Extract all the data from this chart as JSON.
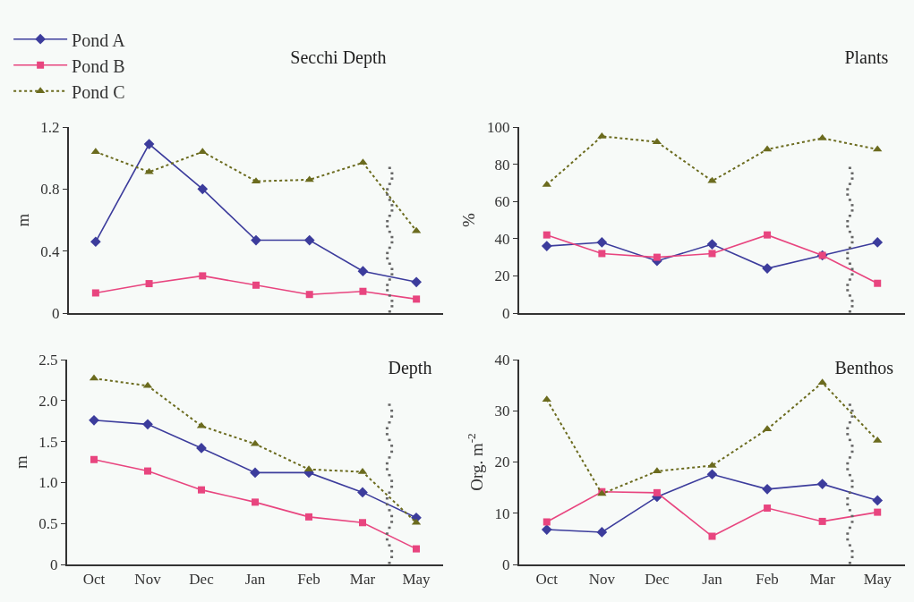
{
  "chart_data": [
    {
      "type": "line",
      "title": "Secchi Depth",
      "ylabel": "m",
      "categories": [
        null,
        null,
        null,
        null,
        null,
        null,
        null
      ],
      "ylim": [
        0,
        1.2
      ],
      "yticks": [
        0,
        0.4,
        0.8,
        1.2
      ],
      "tick_labels": "y",
      "grid": false,
      "legend": "top left",
      "series": [
        {
          "name": "Pond A",
          "color": "#3c3c9c",
          "marker": "diamond",
          "line_style": "solid",
          "values": [
            0.46,
            1.09,
            0.8,
            0.47,
            0.47,
            0.27,
            0.2
          ]
        },
        {
          "name": "Pond B",
          "color": "#e8457f",
          "marker": "square",
          "line_style": "solid",
          "values": [
            0.13,
            0.19,
            0.24,
            0.18,
            0.12,
            0.14,
            0.09
          ]
        },
        {
          "name": "Pond C",
          "color": "#6b6b1e",
          "marker": "triangle",
          "line_style": "dotted",
          "values": [
            1.04,
            0.91,
            1.04,
            0.85,
            0.86,
            0.97,
            0.53
          ]
        }
      ]
    },
    {
      "type": "line",
      "title": "Plants",
      "ylabel": "%",
      "categories": [
        null,
        null,
        null,
        null,
        null,
        null,
        null
      ],
      "ylim": [
        0,
        100
      ],
      "yticks": [
        0,
        20,
        40,
        60,
        80,
        100
      ],
      "tick_labels": "y",
      "grid": false,
      "series": [
        {
          "color": "#3c3c9c",
          "marker": "diamond",
          "line_style": "solid",
          "values": [
            36,
            38,
            28,
            37,
            24,
            31,
            38
          ]
        },
        {
          "color": "#e8457f",
          "marker": "square",
          "line_style": "solid",
          "values": [
            42,
            32,
            30,
            32,
            42,
            31,
            16
          ]
        },
        {
          "color": "#6b6b1e",
          "marker": "triangle",
          "line_style": "dotted",
          "values": [
            69,
            95,
            92,
            71,
            88,
            94,
            88
          ]
        }
      ]
    },
    {
      "type": "line",
      "title": "Depth",
      "ylabel": "m",
      "categories": [
        "Oct",
        "Nov",
        "Dec",
        "Jan",
        "Feb",
        "Mar",
        "May"
      ],
      "ylim": [
        0,
        2.5
      ],
      "yticks": [
        0,
        {
          "value": 0.5,
          "label": "0.5"
        },
        {
          "value": 1,
          "label": "1.0"
        },
        {
          "value": 1.5,
          "label": "1.5"
        },
        {
          "value": 2,
          "label": "2.0"
        },
        {
          "value": 2.5,
          "label": "2.5"
        }
      ],
      "grid": false,
      "series": [
        {
          "color": "#3c3c9c",
          "marker": "diamond",
          "line_style": "solid",
          "values": [
            1.76,
            1.71,
            1.42,
            1.12,
            1.12,
            0.88,
            0.57
          ]
        },
        {
          "color": "#e8457f",
          "marker": "square",
          "line_style": "solid",
          "values": [
            1.28,
            1.14,
            0.91,
            0.76,
            0.58,
            0.51,
            0.19
          ]
        },
        {
          "color": "#6b6b1e",
          "marker": "triangle",
          "line_style": "dotted",
          "values": [
            2.27,
            2.18,
            1.69,
            1.47,
            1.16,
            1.13,
            0.51
          ]
        }
      ]
    },
    {
      "type": "line",
      "title": "Benthos",
      "ylabel": "Org. m$^{-2}$",
      "categories": [
        "Oct",
        "Nov",
        "Dec",
        "Jan",
        "Feb",
        "Mar",
        "May"
      ],
      "ylim": [
        0,
        40
      ],
      "yticks": [
        0,
        10,
        20,
        30,
        40
      ],
      "grid": false,
      "series": [
        {
          "color": "#3c3c9c",
          "marker": "diamond",
          "line_style": "solid",
          "values": [
            6.8,
            6.3,
            13.2,
            17.6,
            14.7,
            15.7,
            12.5
          ]
        },
        {
          "color": "#e8457f",
          "marker": "square",
          "line_style": "solid",
          "values": [
            8.3,
            14.2,
            14.0,
            5.5,
            11.0,
            8.4,
            10.2
          ]
        },
        {
          "color": "#6b6b1e",
          "marker": "triangle",
          "line_style": "dotted",
          "values": [
            32.2,
            13.8,
            18.2,
            19.3,
            26.4,
            35.5,
            24.2
          ]
        }
      ]
    }
  ]
}
